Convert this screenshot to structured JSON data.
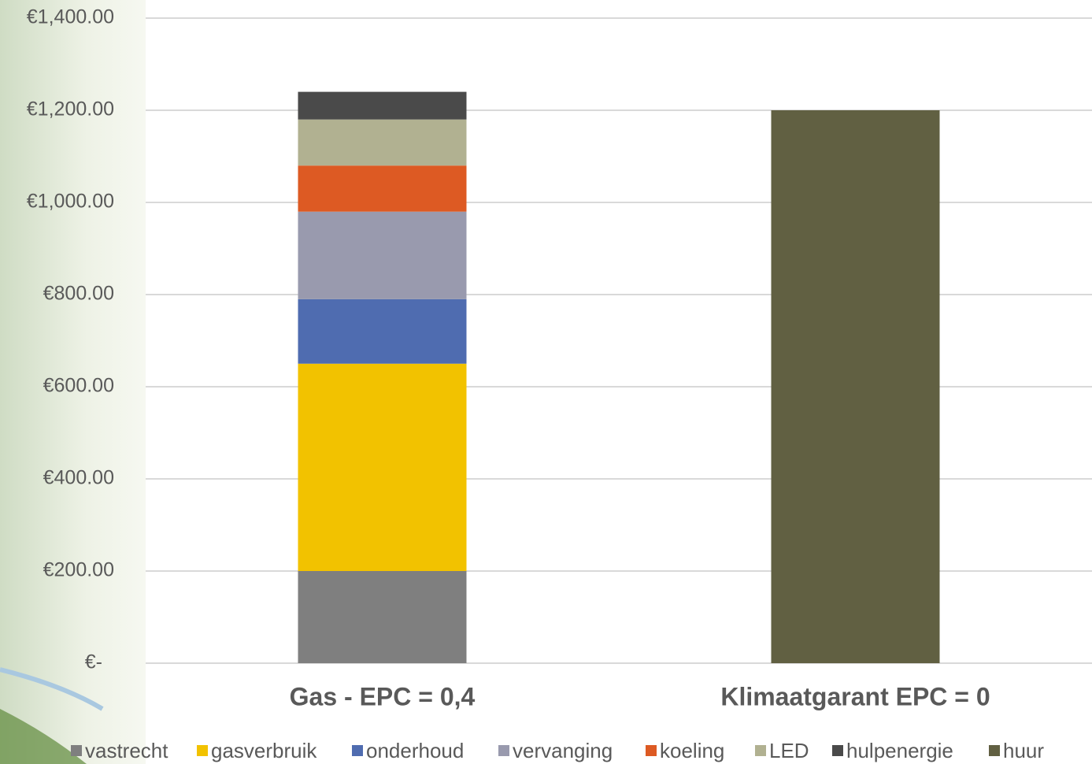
{
  "chart_data": {
    "type": "stacked-bar",
    "categories": [
      "Gas - EPC = 0,4",
      "Klimaatgarant EPC = 0"
    ],
    "series": [
      {
        "name": "vastrecht",
        "color": "#7f7f7f",
        "values": [
          200,
          null
        ]
      },
      {
        "name": "gasverbruik",
        "color": "#f2c200",
        "values": [
          450,
          null
        ]
      },
      {
        "name": "onderhoud",
        "color": "#4f6cb0",
        "values": [
          140,
          null
        ]
      },
      {
        "name": "vervanging",
        "color": "#999aae",
        "values": [
          190,
          null
        ]
      },
      {
        "name": "koeling",
        "color": "#dd5a23",
        "values": [
          100,
          null
        ]
      },
      {
        "name": "LED",
        "color": "#b1b191",
        "values": [
          100,
          null
        ]
      },
      {
        "name": "hulpenergie",
        "color": "#4a4a4a",
        "values": [
          60,
          null
        ]
      },
      {
        "name": "huur",
        "color": "#616042",
        "values": [
          null,
          1200
        ]
      }
    ],
    "ylim": [
      0,
      1400
    ],
    "yticks": [
      {
        "value": 0,
        "label": "€-"
      },
      {
        "value": 200,
        "label": "€200.00"
      },
      {
        "value": 400,
        "label": "€400.00"
      },
      {
        "value": 600,
        "label": "€600.00"
      },
      {
        "value": 800,
        "label": "€800.00"
      },
      {
        "value": 1000,
        "label": "€1,000.00"
      },
      {
        "value": 1200,
        "label": "€1,200.00"
      },
      {
        "value": 1400,
        "label": "€1,400.00"
      }
    ],
    "grid": true,
    "legend": "bottom"
  }
}
